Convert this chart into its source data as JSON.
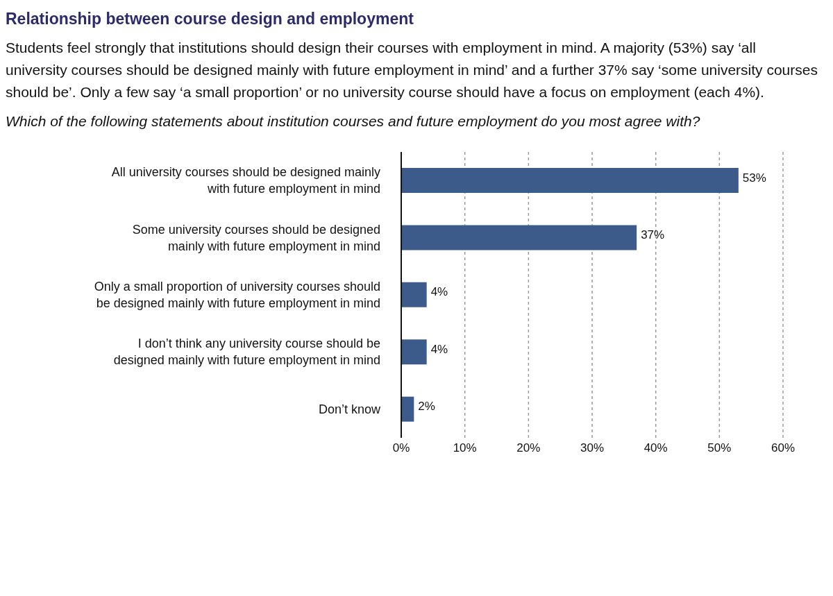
{
  "chart_data": {
    "type": "bar",
    "orientation": "horizontal",
    "title": "Relationship between course design and employment",
    "subtitle": "Students feel strongly that institutions should design their courses with employment in mind. A majority (53%) say ‘all university courses should be designed mainly with future employment in mind’ and a further 37% say  ‘some university courses should be’. Only a few say ‘a small proportion’ or no university course should have a focus on employment (each 4%).",
    "annotations": [
      "Which of the following statements about institution courses and future employment do you most agree with?"
    ],
    "categories": [
      "All university courses should be designed mainly with future employment in mind",
      "Some university courses should be designed mainly with future employment in mind",
      "Only a small proportion of university courses should be designed mainly with future employment in mind",
      "I don’t think any university course should be designed mainly with future employment in mind",
      "Don’t know"
    ],
    "values": [
      53,
      37,
      4,
      4,
      2
    ],
    "value_labels": [
      "53%",
      "37%",
      "4%",
      "4%",
      "2%"
    ],
    "color": "#3c5a8a",
    "xlim": [
      0,
      60
    ],
    "xticks": [
      {
        "value": 0,
        "label": "0%"
      },
      {
        "value": 10,
        "label": "10%"
      },
      {
        "value": 20,
        "label": "20%"
      },
      {
        "value": 30,
        "label": "30%"
      },
      {
        "value": 40,
        "label": "40%"
      },
      {
        "value": 50,
        "label": "50%"
      },
      {
        "value": 60,
        "label": "60%"
      }
    ],
    "grid": "x"
  }
}
